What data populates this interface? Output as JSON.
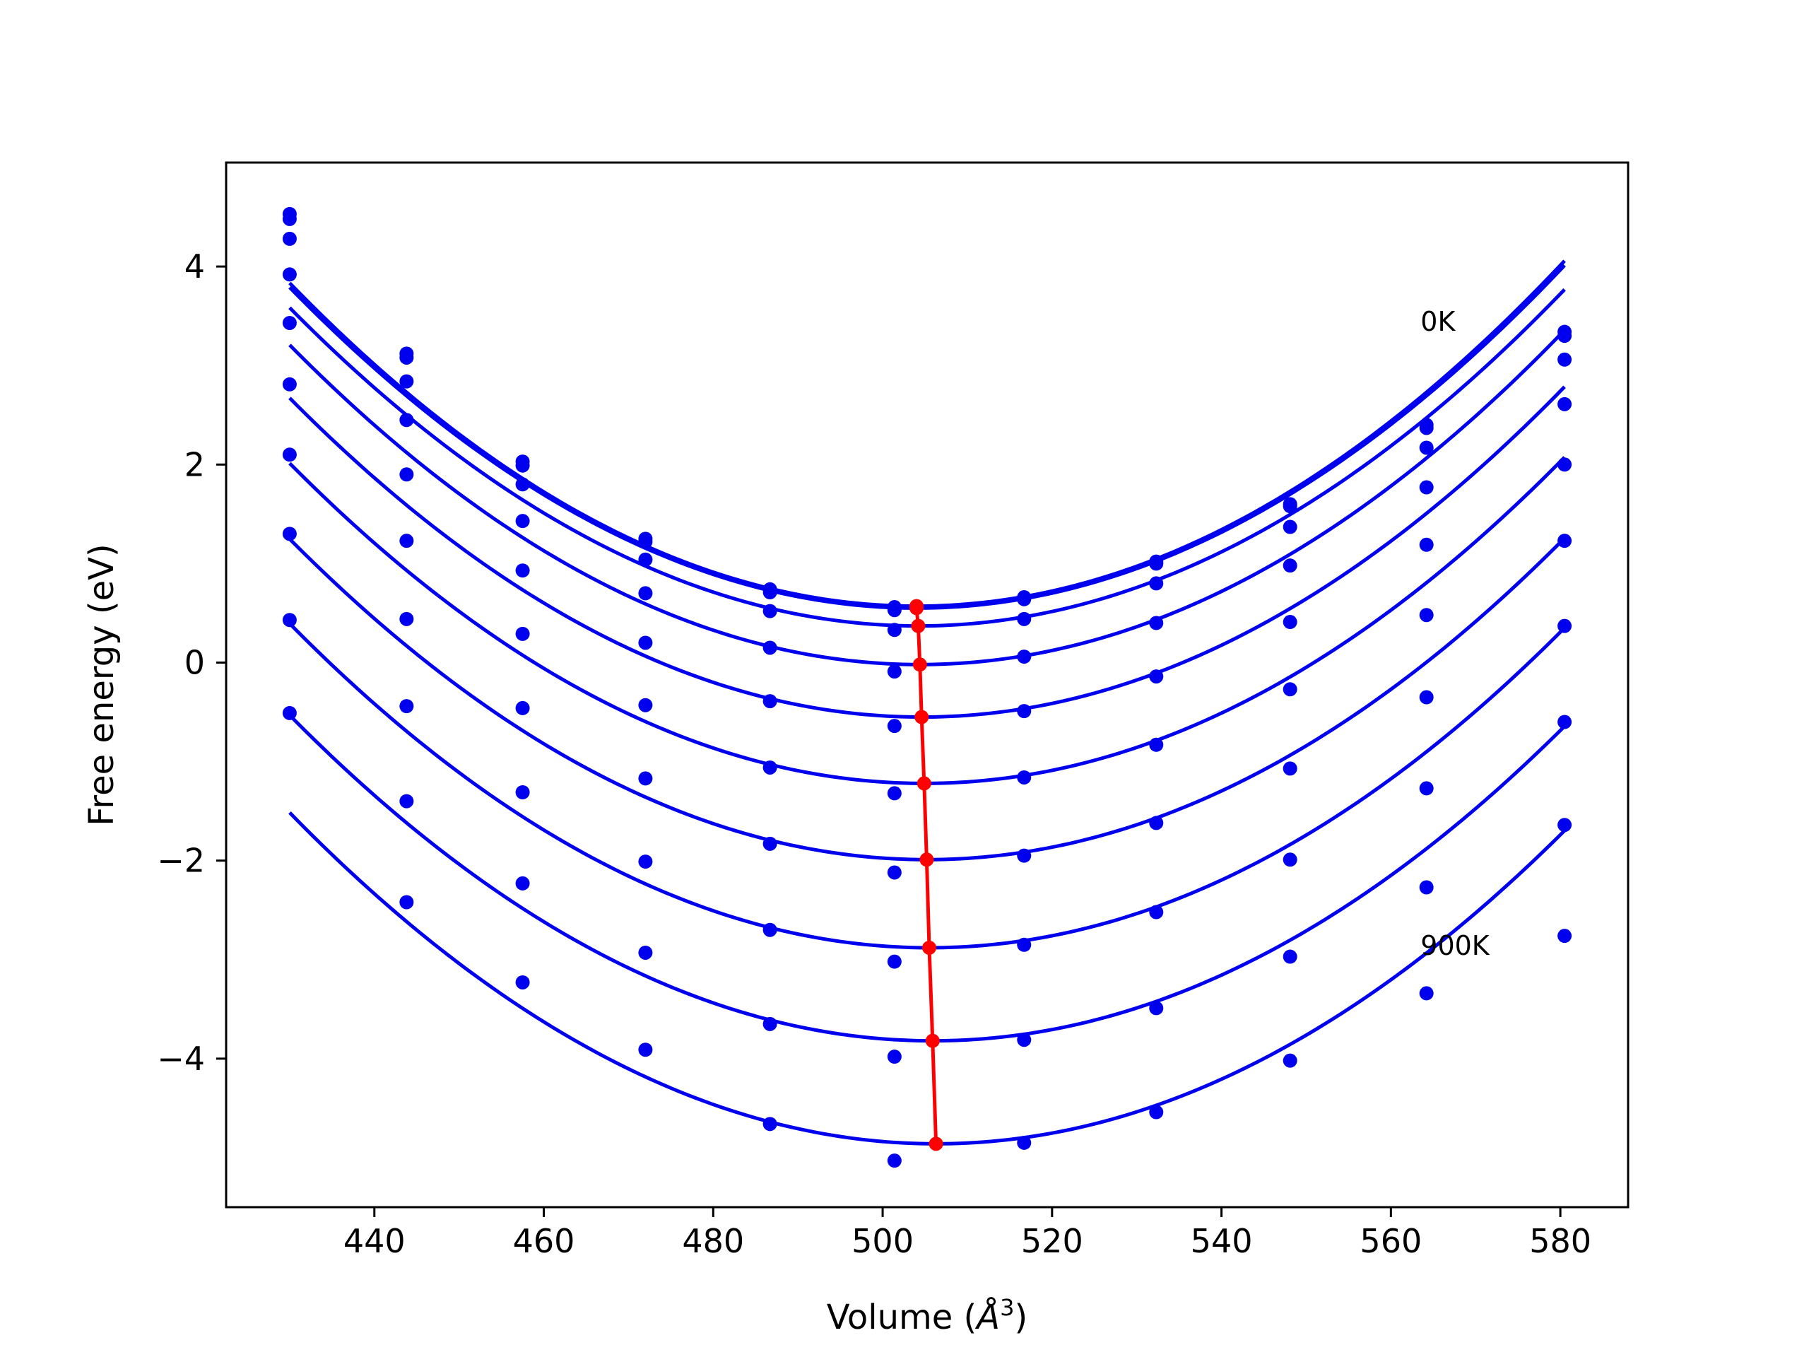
{
  "chart_data": {
    "type": "line",
    "xlabel": "Volume (",
    "xlabel_unit": "Å",
    "xlabel_exp": "3",
    "xlabel_close": ")",
    "ylabel": "Free energy (eV)",
    "xlim": [
      422.5,
      588
    ],
    "ylim": [
      -5.5,
      5.05
    ],
    "x_ticks": [
      440,
      460,
      480,
      500,
      520,
      540,
      560,
      580
    ],
    "y_ticks": [
      -4,
      -2,
      0,
      2,
      4
    ],
    "grid": false,
    "annotations": [
      {
        "text": "0K",
        "x": 563.5,
        "y": 3.35
      },
      {
        "text": "900K",
        "x": 563.5,
        "y": -2.95
      }
    ],
    "colors": {
      "curves": "#0000ee",
      "points": "#0000ee",
      "equilibrium": "#ff0000"
    },
    "x": [
      430,
      443.8,
      457.5,
      472,
      486.7,
      501.4,
      516.7,
      532.3,
      548.1,
      564.2,
      580.5
    ],
    "series": [
      {
        "min_v": 504.0,
        "min_e": 0.57,
        "points": [
          4.53,
          3.12,
          2.03,
          1.25,
          0.74,
          0.56,
          0.66,
          1.02,
          1.6,
          2.4,
          3.34
        ]
      },
      {
        "min_v": 504.0,
        "min_e": 0.55,
        "points": [
          4.48,
          3.08,
          1.99,
          1.22,
          0.71,
          0.53,
          0.64,
          1.0,
          1.58,
          2.37,
          3.3
        ]
      },
      {
        "min_v": 504.2,
        "min_e": 0.37,
        "points": [
          4.28,
          2.84,
          1.8,
          1.04,
          0.52,
          0.33,
          0.44,
          0.8,
          1.37,
          2.17,
          3.06
        ]
      },
      {
        "min_v": 504.4,
        "min_e": -0.02,
        "points": [
          3.92,
          2.45,
          1.43,
          0.7,
          0.15,
          -0.09,
          0.06,
          0.4,
          0.98,
          1.77,
          2.61
        ]
      },
      {
        "min_v": 504.6,
        "min_e": -0.55,
        "points": [
          3.43,
          1.9,
          0.93,
          0.2,
          -0.39,
          -0.64,
          -0.49,
          -0.14,
          0.41,
          1.19,
          2.0
        ]
      },
      {
        "min_v": 504.9,
        "min_e": -1.22,
        "points": [
          2.81,
          1.23,
          0.29,
          -0.43,
          -1.06,
          -1.32,
          -1.16,
          -0.83,
          -0.27,
          0.48,
          1.23
        ]
      },
      {
        "min_v": 505.2,
        "min_e": -1.99,
        "points": [
          2.1,
          0.44,
          -0.46,
          -1.17,
          -1.83,
          -2.12,
          -1.95,
          -1.62,
          -1.07,
          -0.35,
          0.37
        ]
      },
      {
        "min_v": 505.5,
        "min_e": -2.88,
        "points": [
          1.3,
          -0.44,
          -1.31,
          -2.01,
          -2.7,
          -3.02,
          -2.85,
          -2.52,
          -1.99,
          -1.27,
          -0.6
        ]
      },
      {
        "min_v": 505.9,
        "min_e": -3.82,
        "points": [
          0.43,
          -1.4,
          -2.23,
          -2.93,
          -3.65,
          -3.98,
          -3.81,
          -3.49,
          -2.97,
          -2.27,
          -1.64
        ]
      },
      {
        "min_v": 506.3,
        "min_e": -4.86,
        "points": [
          -0.51,
          -2.42,
          -3.23,
          -3.91,
          -4.66,
          -5.03,
          -4.85,
          -4.54,
          -4.02,
          -3.34,
          -2.76
        ]
      }
    ]
  }
}
